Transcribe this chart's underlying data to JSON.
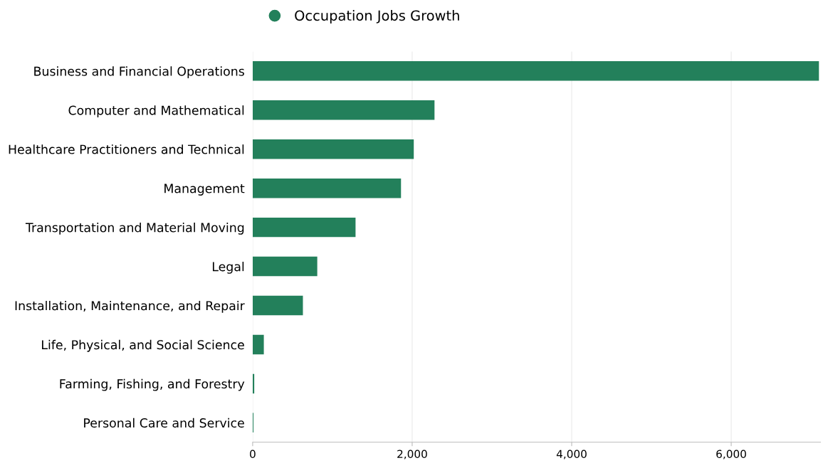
{
  "chart_data": {
    "type": "bar",
    "orientation": "horizontal",
    "categories": [
      "Business and Financial Operations",
      "Computer and Mathematical",
      "Healthcare Practitioners and Technical",
      "Management",
      "Transportation and Material Moving",
      "Legal",
      "Installation, Maintenance, and Repair",
      "Life, Physical, and Social Science",
      "Farming, Fishing, and Forestry",
      "Personal Care and Service"
    ],
    "series": [
      {
        "name": "Occupation Jobs Growth",
        "color": "#23805b",
        "values": [
          7100,
          2280,
          2020,
          1860,
          1290,
          810,
          630,
          140,
          20,
          10
        ]
      }
    ],
    "xlim": [
      0,
      7120
    ],
    "xticks": [
      {
        "value": 0,
        "label": "0"
      },
      {
        "value": 2000,
        "label": "2,000"
      },
      {
        "value": 4000,
        "label": "4,000"
      },
      {
        "value": 6000,
        "label": "6,000"
      }
    ],
    "grid": "x",
    "legend": "top",
    "marker": "circle"
  }
}
